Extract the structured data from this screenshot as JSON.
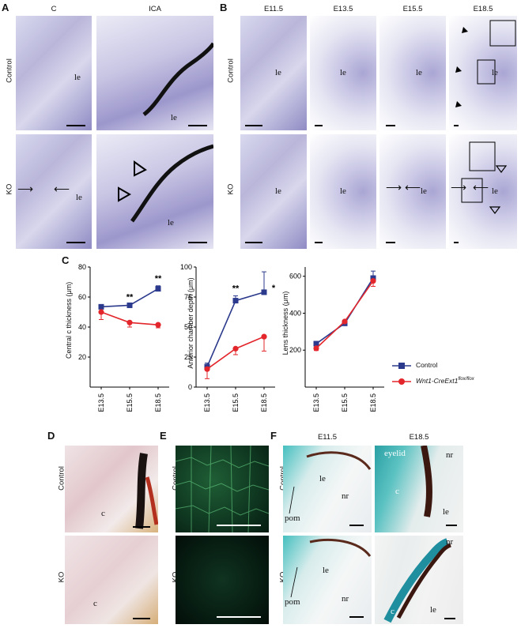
{
  "panelA": {
    "letter": "A",
    "col_headers": [
      "C",
      "ICA"
    ],
    "row_headers": [
      "Control",
      "KO"
    ],
    "labels": {
      "le": "le"
    }
  },
  "panelB": {
    "letter": "B",
    "col_headers": [
      "E11.5",
      "E13.5",
      "E15.5",
      "E18.5"
    ],
    "row_headers": [
      "Control",
      "KO"
    ],
    "labels": {
      "le": "le"
    }
  },
  "panelC": {
    "letter": "C"
  },
  "chart_data": [
    {
      "type": "line",
      "categories": [
        "E13.5",
        "E15.5",
        "E18.5"
      ],
      "ylabel": "Central c thickness (μm)",
      "ylim": [
        0,
        80
      ],
      "yticks": [
        20,
        40,
        60,
        80
      ],
      "series": [
        {
          "name": "Control",
          "values": [
            53.5,
            54.5,
            65.5
          ],
          "errors": [
            1,
            0.5,
            2
          ],
          "color": "#2b3a8c"
        },
        {
          "name": "Wnt1-CreExt1flox/flox",
          "values": [
            50,
            43,
            41.5
          ],
          "errors": [
            5,
            3,
            2
          ],
          "color": "#e3262b"
        }
      ],
      "annotations": [
        {
          "x": "E15.5",
          "text": "**"
        },
        {
          "x": "E18.5",
          "text": "**"
        }
      ]
    },
    {
      "type": "line",
      "categories": [
        "E13.5",
        "E15.5",
        "E18.5"
      ],
      "ylabel": "Anterior chamber depth (μm)",
      "ylim": [
        0,
        100
      ],
      "yticks": [
        0,
        25,
        50,
        75,
        100
      ],
      "series": [
        {
          "name": "Control",
          "values": [
            17,
            72,
            79
          ],
          "errors": [
            3,
            4,
            17
          ],
          "color": "#2b3a8c"
        },
        {
          "name": "Wnt1-CreExt1flox/flox",
          "values": [
            15,
            32,
            42
          ],
          "errors": [
            8,
            5,
            12
          ],
          "color": "#e3262b"
        }
      ],
      "annotations": [
        {
          "x": "E15.5",
          "text": "**"
        },
        {
          "x": "E18.5",
          "text": "*"
        }
      ]
    },
    {
      "type": "line",
      "categories": [
        "E13.5",
        "E15.5",
        "E18.5"
      ],
      "ylabel": "Lens thickness (μm)",
      "ylim": [
        0,
        650
      ],
      "yticks": [
        200,
        400,
        600
      ],
      "series": [
        {
          "name": "Control",
          "values": [
            235,
            345,
            590
          ],
          "errors": [
            12,
            8,
            38
          ],
          "color": "#2b3a8c"
        },
        {
          "name": "Wnt1-CreExt1flox/flox",
          "values": [
            210,
            355,
            575
          ],
          "errors": [
            12,
            8,
            30
          ],
          "color": "#e3262b"
        }
      ],
      "annotations": []
    }
  ],
  "legend": {
    "control": "Control",
    "ko_prefix": "Wnt1-CreExt1",
    "ko_sup": "flox/flox"
  },
  "panelD": {
    "letter": "D",
    "row_headers": [
      "Control",
      "KO"
    ],
    "labels": {
      "c": "c"
    }
  },
  "panelE": {
    "letter": "E",
    "row_headers": [
      "Control",
      "KO"
    ]
  },
  "panelF": {
    "letter": "F",
    "col_headers": [
      "E11.5",
      "E18.5"
    ],
    "row_headers": [
      "Control",
      "KO"
    ],
    "labels": {
      "le": "le",
      "nr": "nr",
      "pom": "pom",
      "eyelid": "eyelid",
      "c": "c"
    }
  }
}
